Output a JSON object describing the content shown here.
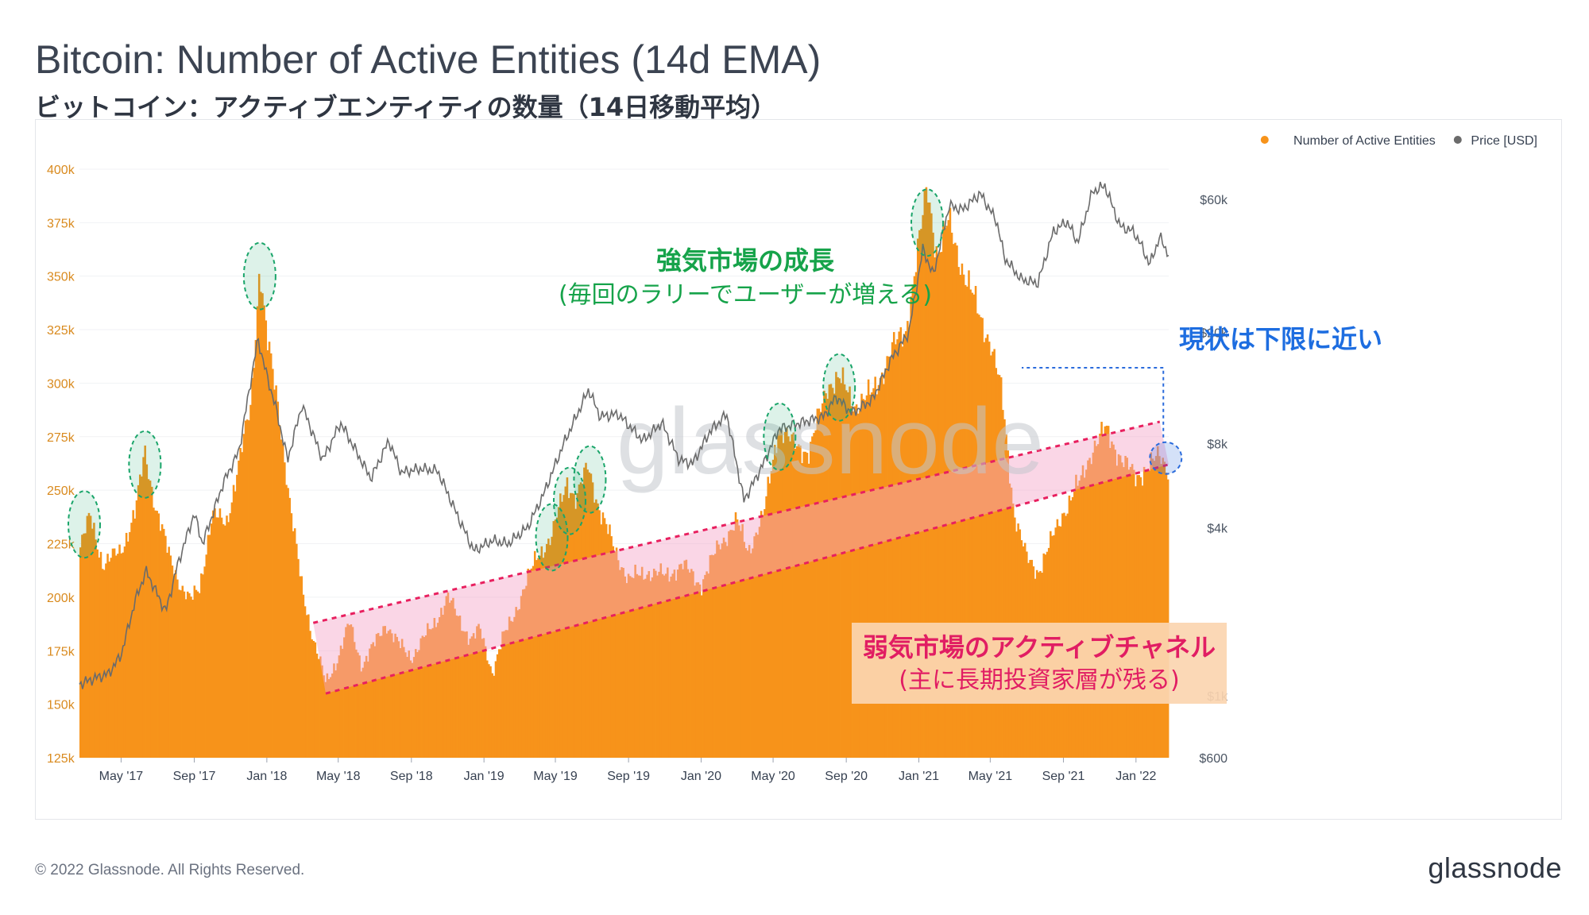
{
  "title": "Bitcoin: Number of Active Entities (14d EMA)",
  "subtitle": "ビットコイン：アクティブエンティティの数量（14日移動平均）",
  "footer": {
    "copyright": "© 2022 Glassnode. All Rights Reserved.",
    "logo": "glassnode"
  },
  "watermark": "glassnode",
  "colors": {
    "entities": "#f7931a",
    "price": "#6b6b6b",
    "channel": "#f5a3c7",
    "channel_line": "#e8205f",
    "highlight": "#1aa56a",
    "current": "#2a6bdc",
    "annotation_green": "#16a34a",
    "annotation_red": "#e11d63",
    "annotation_blue": "#1d6de0"
  },
  "chart_data": {
    "type": "bar",
    "xlabel": "",
    "ylabel": "",
    "legend": {
      "placement": "top-right",
      "items": [
        {
          "label": "Number of Active Entities",
          "color": "#f7931a",
          "marker": "circle"
        },
        {
          "label": "Price [USD]",
          "color": "#6b6b6b",
          "marker": "circle"
        }
      ]
    },
    "x_ticks": [
      "May '17",
      "Sep '17",
      "Jan '18",
      "May '18",
      "Sep '18",
      "Jan '19",
      "May '19",
      "Sep '19",
      "Jan '20",
      "May '20",
      "Sep '20",
      "Jan '21",
      "May '21",
      "Sep '21",
      "Jan '22"
    ],
    "x_tick_dates": [
      "2017-05-01",
      "2017-09-01",
      "2018-01-01",
      "2018-05-01",
      "2018-09-01",
      "2019-01-01",
      "2019-05-01",
      "2019-09-01",
      "2020-01-01",
      "2020-05-01",
      "2020-09-01",
      "2021-01-01",
      "2021-05-01",
      "2021-09-01",
      "2022-01-01"
    ],
    "x_range": [
      "2017-02-20",
      "2022-02-25"
    ],
    "y_left": {
      "ticks": [
        "125k",
        "150k",
        "175k",
        "200k",
        "225k",
        "250k",
        "275k",
        "300k",
        "325k",
        "350k",
        "375k",
        "400k"
      ],
      "range": [
        125000,
        410000
      ]
    },
    "y_right": {
      "scale": "log",
      "ticks": [
        "$600",
        "$1k",
        "$4k",
        "$8k",
        "$20k",
        "$60k"
      ],
      "tick_values": [
        600,
        1000,
        4000,
        8000,
        20000,
        60000
      ]
    },
    "series": [
      {
        "name": "Number of Active Entities",
        "axis": "left",
        "style": "bar",
        "points": [
          [
            "2017-02-20",
            222000
          ],
          [
            "2017-03-10",
            238000
          ],
          [
            "2017-04-01",
            215000
          ],
          [
            "2017-05-01",
            222000
          ],
          [
            "2017-05-25",
            240000
          ],
          [
            "2017-06-10",
            268000
          ],
          [
            "2017-06-28",
            242000
          ],
          [
            "2017-07-20",
            220000
          ],
          [
            "2017-08-10",
            205000
          ],
          [
            "2017-08-25",
            198000
          ],
          [
            "2017-09-10",
            205000
          ],
          [
            "2017-10-01",
            238000
          ],
          [
            "2017-10-25",
            235000
          ],
          [
            "2017-11-15",
            262000
          ],
          [
            "2017-12-05",
            290000
          ],
          [
            "2017-12-20",
            355000
          ],
          [
            "2018-01-01",
            320000
          ],
          [
            "2018-01-20",
            290000
          ],
          [
            "2018-02-10",
            240000
          ],
          [
            "2018-03-01",
            205000
          ],
          [
            "2018-03-20",
            180000
          ],
          [
            "2018-04-10",
            160000
          ],
          [
            "2018-05-01",
            172000
          ],
          [
            "2018-05-20",
            188000
          ],
          [
            "2018-06-10",
            168000
          ],
          [
            "2018-07-01",
            178000
          ],
          [
            "2018-07-20",
            188000
          ],
          [
            "2018-08-10",
            178000
          ],
          [
            "2018-09-01",
            172000
          ],
          [
            "2018-09-20",
            180000
          ],
          [
            "2018-10-10",
            188000
          ],
          [
            "2018-11-01",
            200000
          ],
          [
            "2018-11-20",
            190000
          ],
          [
            "2018-12-10",
            180000
          ],
          [
            "2018-12-25",
            185000
          ],
          [
            "2019-01-15",
            165000
          ],
          [
            "2019-02-01",
            180000
          ],
          [
            "2019-03-01",
            198000
          ],
          [
            "2019-04-01",
            220000
          ],
          [
            "2019-04-25",
            228000
          ],
          [
            "2019-05-20",
            255000
          ],
          [
            "2019-06-05",
            245000
          ],
          [
            "2019-06-25",
            262000
          ],
          [
            "2019-07-15",
            240000
          ],
          [
            "2019-08-05",
            225000
          ],
          [
            "2019-09-01",
            208000
          ],
          [
            "2019-10-01",
            212000
          ],
          [
            "2019-11-01",
            210000
          ],
          [
            "2019-12-01",
            215000
          ],
          [
            "2020-01-01",
            206000
          ],
          [
            "2020-02-01",
            225000
          ],
          [
            "2020-03-01",
            235000
          ],
          [
            "2020-03-20",
            222000
          ],
          [
            "2020-04-15",
            238000
          ],
          [
            "2020-05-10",
            280000
          ],
          [
            "2020-06-01",
            272000
          ],
          [
            "2020-07-01",
            268000
          ],
          [
            "2020-08-01",
            300000
          ],
          [
            "2020-08-20",
            302000
          ],
          [
            "2020-09-15",
            290000
          ],
          [
            "2020-10-15",
            295000
          ],
          [
            "2020-11-15",
            315000
          ],
          [
            "2020-12-10",
            325000
          ],
          [
            "2021-01-05",
            372000
          ],
          [
            "2021-01-15",
            392000
          ],
          [
            "2021-02-01",
            360000
          ],
          [
            "2021-02-20",
            375000
          ],
          [
            "2021-03-20",
            350000
          ],
          [
            "2021-04-15",
            330000
          ],
          [
            "2021-05-01",
            320000
          ],
          [
            "2021-05-20",
            295000
          ],
          [
            "2021-06-10",
            240000
          ],
          [
            "2021-07-01",
            218000
          ],
          [
            "2021-07-20",
            212000
          ],
          [
            "2021-08-10",
            225000
          ],
          [
            "2021-09-01",
            240000
          ],
          [
            "2021-10-01",
            255000
          ],
          [
            "2021-10-20",
            270000
          ],
          [
            "2021-11-10",
            278000
          ],
          [
            "2021-12-01",
            268000
          ],
          [
            "2022-01-01",
            255000
          ],
          [
            "2022-01-20",
            262000
          ],
          [
            "2022-02-10",
            265000
          ],
          [
            "2022-02-25",
            260000
          ]
        ]
      },
      {
        "name": "Price [USD]",
        "axis": "right",
        "style": "line",
        "points": [
          [
            "2017-02-20",
            1100
          ],
          [
            "2017-03-15",
            1150
          ],
          [
            "2017-04-10",
            1200
          ],
          [
            "2017-05-01",
            1400
          ],
          [
            "2017-05-25",
            2200
          ],
          [
            "2017-06-12",
            2800
          ],
          [
            "2017-07-15",
            2000
          ],
          [
            "2017-08-05",
            3000
          ],
          [
            "2017-09-01",
            4500
          ],
          [
            "2017-09-15",
            3500
          ],
          [
            "2017-10-20",
            5800
          ],
          [
            "2017-11-15",
            7500
          ],
          [
            "2017-12-17",
            19000
          ],
          [
            "2018-01-01",
            14000
          ],
          [
            "2018-01-15",
            11000
          ],
          [
            "2018-02-05",
            7000
          ],
          [
            "2018-03-01",
            11000
          ],
          [
            "2018-04-05",
            7000
          ],
          [
            "2018-05-05",
            9500
          ],
          [
            "2018-06-25",
            6000
          ],
          [
            "2018-07-25",
            8200
          ],
          [
            "2018-08-15",
            6300
          ],
          [
            "2018-09-15",
            6500
          ],
          [
            "2018-10-15",
            6400
          ],
          [
            "2018-11-20",
            4300
          ],
          [
            "2018-12-15",
            3300
          ],
          [
            "2019-01-15",
            3600
          ],
          [
            "2019-02-10",
            3500
          ],
          [
            "2019-03-15",
            4000
          ],
          [
            "2019-04-10",
            5200
          ],
          [
            "2019-05-15",
            8000
          ],
          [
            "2019-06-26",
            12500
          ],
          [
            "2019-07-15",
            10000
          ],
          [
            "2019-08-15",
            10200
          ],
          [
            "2019-09-25",
            8200
          ],
          [
            "2019-10-27",
            9500
          ],
          [
            "2019-11-25",
            7000
          ],
          [
            "2019-12-18",
            6800
          ],
          [
            "2020-01-15",
            8800
          ],
          [
            "2020-02-13",
            10200
          ],
          [
            "2020-03-13",
            5000
          ],
          [
            "2020-04-15",
            6800
          ],
          [
            "2020-05-10",
            9000
          ],
          [
            "2020-06-15",
            9500
          ],
          [
            "2020-07-25",
            10000
          ],
          [
            "2020-08-15",
            11800
          ],
          [
            "2020-09-10",
            10300
          ],
          [
            "2020-10-15",
            11500
          ],
          [
            "2020-11-15",
            16000
          ],
          [
            "2020-12-15",
            20000
          ],
          [
            "2021-01-08",
            40000
          ],
          [
            "2021-01-25",
            32000
          ],
          [
            "2021-02-21",
            57000
          ],
          [
            "2021-03-15",
            55000
          ],
          [
            "2021-04-14",
            63000
          ],
          [
            "2021-05-12",
            50000
          ],
          [
            "2021-05-25",
            37000
          ],
          [
            "2021-06-22",
            31000
          ],
          [
            "2021-07-20",
            30000
          ],
          [
            "2021-08-15",
            46000
          ],
          [
            "2021-09-07",
            50000
          ],
          [
            "2021-09-25",
            42000
          ],
          [
            "2021-10-20",
            64000
          ],
          [
            "2021-11-10",
            67000
          ],
          [
            "2021-12-05",
            48000
          ],
          [
            "2021-12-28",
            46000
          ],
          [
            "2022-01-10",
            41000
          ],
          [
            "2022-01-24",
            35000
          ],
          [
            "2022-02-10",
            44000
          ],
          [
            "2022-02-25",
            38000
          ]
        ]
      }
    ],
    "annotations": [
      {
        "id": "bull",
        "lines": [
          "強気市場の成長",
          "(毎回のラリーでユーザーが増える)"
        ]
      },
      {
        "id": "bear",
        "lines": [
          "弱気市場のアクティブチャネル",
          "(主に長期投資家層が残る)"
        ]
      },
      {
        "id": "now",
        "lines": [
          "現状は下限に近い"
        ]
      }
    ],
    "channel": {
      "upper": [
        [
          "2018-03-20",
          188000
        ],
        [
          "2022-02-10",
          282000
        ]
      ],
      "lower": [
        [
          "2018-04-10",
          155000
        ],
        [
          "2022-02-25",
          262000
        ]
      ]
    },
    "highlighted_peaks": [
      {
        "date": "2017-02-28",
        "value": 234000
      },
      {
        "date": "2017-06-10",
        "value": 262000
      },
      {
        "date": "2017-12-20",
        "value": 350000
      },
      {
        "date": "2019-04-25",
        "value": 228000
      },
      {
        "date": "2019-05-25",
        "value": 245000
      },
      {
        "date": "2019-06-28",
        "value": 255000
      },
      {
        "date": "2020-05-12",
        "value": 275000
      },
      {
        "date": "2020-08-20",
        "value": 298000
      },
      {
        "date": "2021-01-15",
        "value": 375000
      }
    ],
    "current_marker": {
      "date": "2022-02-20",
      "value": 265000
    }
  }
}
